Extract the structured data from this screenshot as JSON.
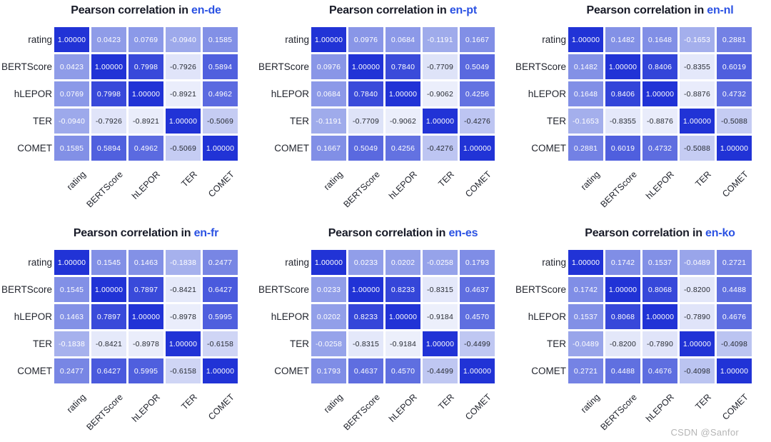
{
  "watermark": "CSDN @Sanfor",
  "colors": {
    "page_background": "#ffffff",
    "title_text": "#181b28",
    "lang_accent": "#2b52e3",
    "axis_text": "#22252e",
    "scale_min": "#f4f6fd",
    "scale_mid": "#94a1e9",
    "scale_max": "#2133d6",
    "cell_text_light": "#ffffff",
    "cell_text_dark": "#272b33",
    "text_dark_threshold": -0.3,
    "watermark_text": "#b5b5b5"
  },
  "chart_data": [
    {
      "type": "heatmap",
      "title": "Pearson correlation in en-de",
      "title_prefix": "Pearson correlation in",
      "lang_pair": "en-de",
      "categories": [
        "rating",
        "BERTScore",
        "hLEPOR",
        "TER",
        "COMET"
      ],
      "value_range": [
        -1,
        1
      ],
      "values": [
        [
          "1.00000",
          "0.0423",
          "0.0769",
          "-0.0940",
          "0.1585"
        ],
        [
          "0.0423",
          "1.00000",
          "0.7998",
          "-0.7926",
          "0.5894"
        ],
        [
          "0.0769",
          "0.7998",
          "1.00000",
          "-0.8921",
          "0.4962"
        ],
        [
          "-0.0940",
          "-0.7926",
          "-0.8921",
          "1.00000",
          "-0.5069"
        ],
        [
          "0.1585",
          "0.5894",
          "0.4962",
          "-0.5069",
          "1.00000"
        ]
      ]
    },
    {
      "type": "heatmap",
      "title": "Pearson correlation in en-pt",
      "title_prefix": "Pearson correlation in",
      "lang_pair": "en-pt",
      "categories": [
        "rating",
        "BERTScore",
        "hLEPOR",
        "TER",
        "COMET"
      ],
      "value_range": [
        -1,
        1
      ],
      "values": [
        [
          "1.00000",
          "0.0976",
          "0.0684",
          "-0.1191",
          "0.1667"
        ],
        [
          "0.0976",
          "1.00000",
          "0.7840",
          "-0.7709",
          "0.5049"
        ],
        [
          "0.0684",
          "0.7840",
          "1.00000",
          "-0.9062",
          "0.4256"
        ],
        [
          "-0.1191",
          "-0.7709",
          "-0.9062",
          "1.00000",
          "-0.4276"
        ],
        [
          "0.1667",
          "0.5049",
          "0.4256",
          "-0.4276",
          "1.00000"
        ]
      ]
    },
    {
      "type": "heatmap",
      "title": "Pearson correlation in en-nl",
      "title_prefix": "Pearson correlation in",
      "lang_pair": "en-nl",
      "categories": [
        "rating",
        "BERTScore",
        "hLEPOR",
        "TER",
        "COMET"
      ],
      "value_range": [
        -1,
        1
      ],
      "values": [
        [
          "1.00000",
          "0.1482",
          "0.1648",
          "-0.1653",
          "0.2881"
        ],
        [
          "0.1482",
          "1.00000",
          "0.8406",
          "-0.8355",
          "0.6019"
        ],
        [
          "0.1648",
          "0.8406",
          "1.00000",
          "-0.8876",
          "0.4732"
        ],
        [
          "-0.1653",
          "-0.8355",
          "-0.8876",
          "1.00000",
          "-0.5088"
        ],
        [
          "0.2881",
          "0.6019",
          "0.4732",
          "-0.5088",
          "1.00000"
        ]
      ]
    },
    {
      "type": "heatmap",
      "title": "Pearson correlation in en-fr",
      "title_prefix": "Pearson correlation in",
      "lang_pair": "en-fr",
      "categories": [
        "rating",
        "BERTScore",
        "hLEPOR",
        "TER",
        "COMET"
      ],
      "value_range": [
        -1,
        1
      ],
      "values": [
        [
          "1.00000",
          "0.1545",
          "0.1463",
          "-0.1838",
          "0.2477"
        ],
        [
          "0.1545",
          "1.00000",
          "0.7897",
          "-0.8421",
          "0.6427"
        ],
        [
          "0.1463",
          "0.7897",
          "1.00000",
          "-0.8978",
          "0.5995"
        ],
        [
          "-0.1838",
          "-0.8421",
          "-0.8978",
          "1.00000",
          "-0.6158"
        ],
        [
          "0.2477",
          "0.6427",
          "0.5995",
          "-0.6158",
          "1.00000"
        ]
      ]
    },
    {
      "type": "heatmap",
      "title": "Pearson correlation in en-es",
      "title_prefix": "Pearson correlation in",
      "lang_pair": "en-es",
      "categories": [
        "rating",
        "BERTScore",
        "hLEPOR",
        "TER",
        "COMET"
      ],
      "value_range": [
        -1,
        1
      ],
      "values": [
        [
          "1.00000",
          "0.0233",
          "0.0202",
          "-0.0258",
          "0.1793"
        ],
        [
          "0.0233",
          "1.00000",
          "0.8233",
          "-0.8315",
          "0.4637"
        ],
        [
          "0.0202",
          "0.8233",
          "1.00000",
          "-0.9184",
          "0.4570"
        ],
        [
          "-0.0258",
          "-0.8315",
          "-0.9184",
          "1.00000",
          "-0.4499"
        ],
        [
          "0.1793",
          "0.4637",
          "0.4570",
          "-0.4499",
          "1.00000"
        ]
      ]
    },
    {
      "type": "heatmap",
      "title": "Pearson correlation in en-ko",
      "title_prefix": "Pearson correlation in",
      "lang_pair": "en-ko",
      "categories": [
        "rating",
        "BERTScore",
        "hLEPOR",
        "TER",
        "COMET"
      ],
      "value_range": [
        -1,
        1
      ],
      "values": [
        [
          "1.00000",
          "0.1742",
          "0.1537",
          "-0.0489",
          "0.2721"
        ],
        [
          "0.1742",
          "1.00000",
          "0.8068",
          "-0.8200",
          "0.4488"
        ],
        [
          "0.1537",
          "0.8068",
          "1.00000",
          "-0.7890",
          "0.4676"
        ],
        [
          "-0.0489",
          "-0.8200",
          "-0.7890",
          "1.00000",
          "-0.4098"
        ],
        [
          "0.2721",
          "0.4488",
          "0.4676",
          "-0.4098",
          "1.00000"
        ]
      ]
    }
  ]
}
